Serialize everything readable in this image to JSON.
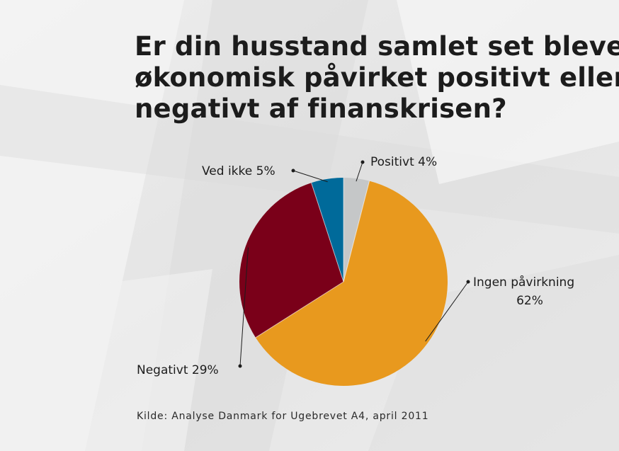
{
  "title_lines": [
    "Er din husstand samlet set blevet",
    "økonomisk påvirket positivt eller",
    "negativt af finanskrisen?"
  ],
  "source": "Kilde: Analyse Danmark for Ugebrevet A4, april 2011",
  "chart_data": {
    "type": "pie",
    "title": "Er din husstand samlet set blevet økonomisk påvirket positivt eller negativt af finanskrisen?",
    "unit": "%",
    "slices": [
      {
        "label": "Positivt",
        "value": 4,
        "value_label": "4%",
        "color": "#c5c7c8"
      },
      {
        "label": "Ingen påvirkning",
        "value": 62,
        "value_label": "62%",
        "color": "#e8991e"
      },
      {
        "label": "Negativt",
        "value": 29,
        "value_label": "29%",
        "color": "#7a0019"
      },
      {
        "label": "Ved ikke",
        "value": 5,
        "value_label": "5%",
        "color": "#006a9a"
      }
    ],
    "legend": "none",
    "labels_outside": true
  }
}
